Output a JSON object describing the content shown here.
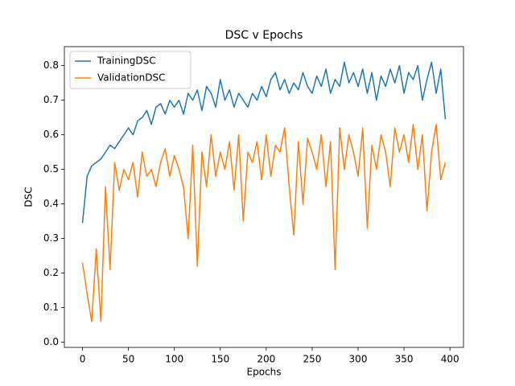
{
  "chart_data": {
    "type": "line",
    "title": "DSC v Epochs",
    "x_label": "Epochs",
    "y_label": "DSC",
    "x": [
      0,
      5,
      10,
      15,
      20,
      25,
      30,
      35,
      40,
      45,
      50,
      55,
      60,
      65,
      70,
      75,
      80,
      85,
      90,
      95,
      100,
      105,
      110,
      115,
      120,
      125,
      130,
      135,
      140,
      145,
      150,
      155,
      160,
      165,
      170,
      175,
      180,
      185,
      190,
      195,
      200,
      205,
      210,
      215,
      220,
      225,
      230,
      235,
      240,
      245,
      250,
      255,
      260,
      265,
      270,
      275,
      280,
      285,
      290,
      295,
      300,
      305,
      310,
      315,
      320,
      325,
      330,
      335,
      340,
      345,
      350,
      355,
      360,
      365,
      370,
      375,
      380,
      385,
      390,
      395
    ],
    "series": [
      {
        "name": "TrainingDSC",
        "color": "#1f77b4",
        "values": [
          0.345,
          0.48,
          0.51,
          0.52,
          0.53,
          0.55,
          0.57,
          0.56,
          0.58,
          0.6,
          0.62,
          0.6,
          0.64,
          0.65,
          0.67,
          0.63,
          0.68,
          0.69,
          0.66,
          0.7,
          0.68,
          0.7,
          0.66,
          0.72,
          0.7,
          0.73,
          0.67,
          0.74,
          0.72,
          0.68,
          0.76,
          0.7,
          0.73,
          0.68,
          0.72,
          0.7,
          0.68,
          0.72,
          0.7,
          0.74,
          0.71,
          0.76,
          0.78,
          0.73,
          0.76,
          0.72,
          0.75,
          0.73,
          0.78,
          0.74,
          0.72,
          0.77,
          0.74,
          0.79,
          0.72,
          0.76,
          0.74,
          0.81,
          0.75,
          0.78,
          0.74,
          0.79,
          0.72,
          0.78,
          0.7,
          0.77,
          0.74,
          0.79,
          0.75,
          0.8,
          0.72,
          0.78,
          0.76,
          0.8,
          0.7,
          0.76,
          0.81,
          0.72,
          0.79,
          0.645
        ]
      },
      {
        "name": "ValidationDSC",
        "color": "#ff7f0e",
        "values": [
          0.23,
          0.14,
          0.06,
          0.27,
          0.06,
          0.45,
          0.21,
          0.52,
          0.44,
          0.5,
          0.47,
          0.52,
          0.42,
          0.55,
          0.48,
          0.5,
          0.45,
          0.52,
          0.56,
          0.48,
          0.54,
          0.5,
          0.45,
          0.3,
          0.57,
          0.22,
          0.55,
          0.45,
          0.6,
          0.48,
          0.55,
          0.5,
          0.58,
          0.44,
          0.6,
          0.35,
          0.55,
          0.52,
          0.58,
          0.47,
          0.6,
          0.48,
          0.57,
          0.55,
          0.62,
          0.45,
          0.31,
          0.58,
          0.4,
          0.59,
          0.55,
          0.5,
          0.6,
          0.45,
          0.58,
          0.21,
          0.62,
          0.5,
          0.6,
          0.55,
          0.48,
          0.62,
          0.33,
          0.57,
          0.5,
          0.6,
          0.55,
          0.45,
          0.62,
          0.55,
          0.6,
          0.52,
          0.63,
          0.5,
          0.6,
          0.38,
          0.55,
          0.63,
          0.47,
          0.52
        ]
      }
    ],
    "xlim": [
      -19.75,
      414.75
    ],
    "xticks": [
      0,
      50,
      100,
      150,
      200,
      250,
      300,
      350,
      400
    ],
    "ylim": [
      -0.015,
      0.855
    ],
    "yticks": [
      {
        "value": 0,
        "label": "0.0"
      },
      0.1,
      0.2,
      0.3,
      0.4,
      0.5,
      0.6,
      0.7,
      0.8
    ],
    "grid": false,
    "legend": "upper left"
  }
}
